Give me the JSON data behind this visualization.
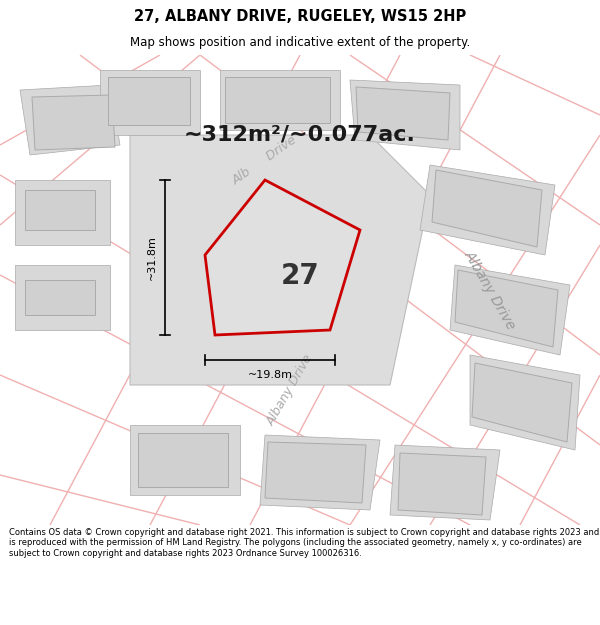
{
  "title": "27, ALBANY DRIVE, RUGELEY, WS15 2HP",
  "subtitle": "Map shows position and indicative extent of the property.",
  "area_text": "~312m²/~0.077ac.",
  "width_label": "~19.8m",
  "height_label": "~31.8m",
  "plot_number": "27",
  "footer": "Contains OS data © Crown copyright and database right 2021. This information is subject to Crown copyright and database rights 2023 and is reproduced with the permission of HM Land Registry. The polygons (including the associated geometry, namely x, y co-ordinates) are subject to Crown copyright and database rights 2023 Ordnance Survey 100026316.",
  "bg_color": "#f5f5f5",
  "plot_fill": "#e0e0e0",
  "plot_edge": "#cc0000",
  "road_color": "#f0b0b0",
  "building_fill": "#d0d0d0",
  "building_edge": "#aaaaaa",
  "plot_block_fill": "#d8d8d8",
  "plot_block_edge": "#bbbbbb"
}
